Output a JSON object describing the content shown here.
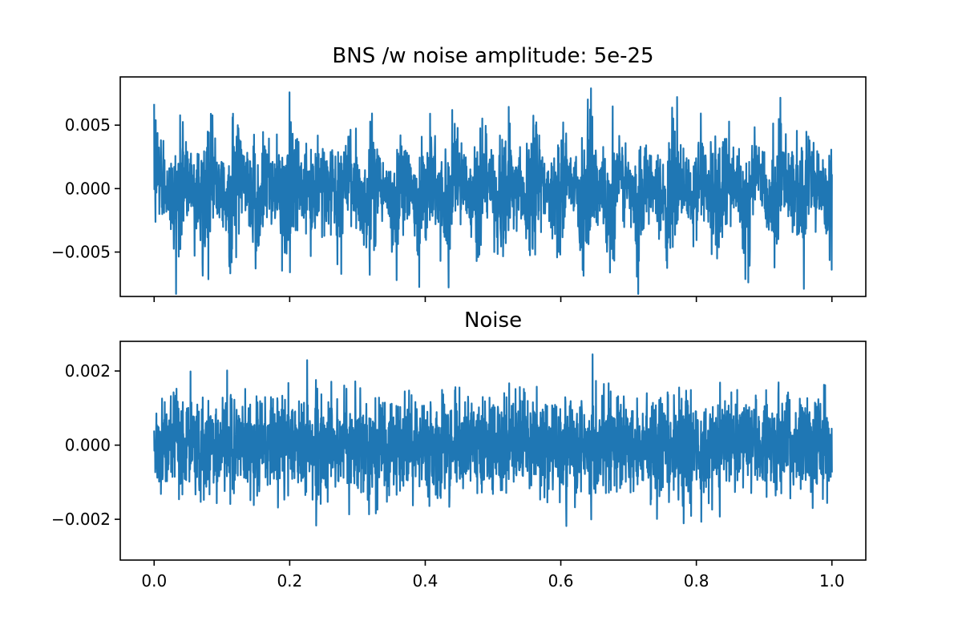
{
  "figure": {
    "background": "#ffffff"
  },
  "chart_data": [
    {
      "type": "line",
      "title": "BNS /w noise amplitude: 5e-25",
      "xlabel": "",
      "ylabel": "",
      "xlim": [
        -0.05,
        1.05
      ],
      "ylim": [
        -0.0085,
        0.0088
      ],
      "x_ticks": [
        0.0,
        0.2,
        0.4,
        0.6,
        0.8,
        1.0
      ],
      "x_ticklabels_visible": false,
      "y_ticks": [
        -0.005,
        0.0,
        0.005
      ],
      "y_ticklabels": [
        "−0.005",
        "0.000",
        "0.005"
      ],
      "grid": false,
      "series": [
        {
          "color": "#1f77b4",
          "x_range": [
            0.0,
            1.0
          ],
          "n_samples": 3000,
          "description_of_shape": "dense oscillating signal with periodic envelope bursts",
          "envelope_peak_times": [
            0.0,
            0.038,
            0.078,
            0.118,
            0.158,
            0.198,
            0.238,
            0.278,
            0.318,
            0.358,
            0.398,
            0.438,
            0.478,
            0.518,
            0.558,
            0.598,
            0.638,
            0.678,
            0.718,
            0.758,
            0.798,
            0.838,
            0.878,
            0.918,
            0.958,
            1.0
          ],
          "y_max_approx": 0.0079,
          "y_min_approx": -0.0083
        }
      ]
    },
    {
      "type": "line",
      "title": "Noise",
      "xlabel": "",
      "ylabel": "",
      "xlim": [
        -0.05,
        1.05
      ],
      "ylim": [
        -0.0031,
        0.0028
      ],
      "x_ticks": [
        0.0,
        0.2,
        0.4,
        0.6,
        0.8,
        1.0
      ],
      "x_ticklabels": [
        "0.0",
        "0.2",
        "0.4",
        "0.6",
        "0.8",
        "1.0"
      ],
      "y_ticks": [
        -0.002,
        0.0,
        0.002
      ],
      "y_ticklabels": [
        "−0.002",
        "0.000",
        "0.002"
      ],
      "grid": false,
      "series": [
        {
          "color": "#1f77b4",
          "x_range": [
            0.0,
            1.0
          ],
          "n_samples": 3000,
          "description_of_shape": "dense random noise",
          "y_max_approx": 0.0025,
          "y_min_approx": -0.0028
        }
      ]
    }
  ]
}
